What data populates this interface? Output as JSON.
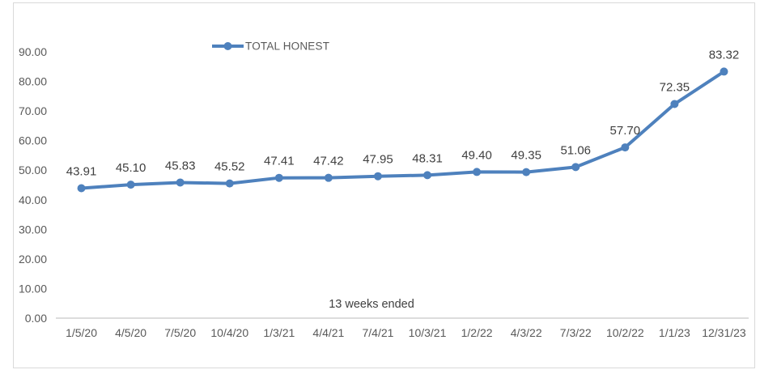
{
  "chart_data": {
    "type": "line",
    "title": "",
    "xlabel": "13 weeks ended",
    "ylabel": "",
    "categories": [
      "1/5/20",
      "4/5/20",
      "7/5/20",
      "10/4/20",
      "1/3/21",
      "4/4/21",
      "7/4/21",
      "10/3/21",
      "1/2/22",
      "4/3/22",
      "7/3/22",
      "10/2/22",
      "1/1/23",
      "12/31/23"
    ],
    "series": [
      {
        "name": "TOTAL HONEST",
        "values": [
          43.91,
          45.1,
          45.83,
          45.52,
          47.41,
          47.42,
          47.95,
          48.31,
          49.4,
          49.35,
          51.06,
          57.7,
          72.35,
          83.32
        ]
      }
    ],
    "legend": {
      "label": "TOTAL HONEST",
      "position": "top-center",
      "marker": "line-with-dot"
    },
    "ylim": [
      0,
      90
    ],
    "ytick_step": 10,
    "ytick_format_decimals": 2,
    "data_labels_visible": true,
    "grid": false,
    "colors": {
      "series_line": "#4E81BD",
      "series_marker": "#4E81BD",
      "data_label_text": "#3f3f3f",
      "tick_label_text": "#595959",
      "axis_title_text": "#404040",
      "axis_line": "#c8c8c8",
      "frame_border": "#d9d9d9",
      "background": "#ffffff"
    }
  }
}
